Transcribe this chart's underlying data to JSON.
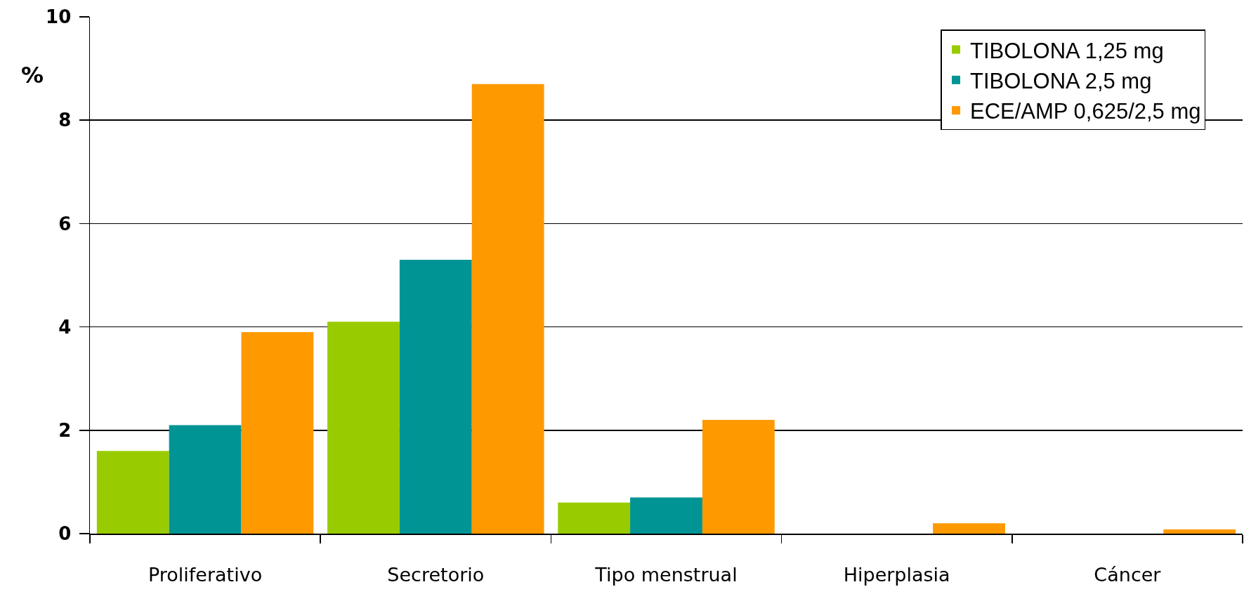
{
  "chart_data": {
    "type": "bar",
    "ylabel": "%",
    "categories": [
      "Proliferativo",
      "Secretorio",
      "Tipo menstrual",
      "Hiperplasia",
      "Cáncer"
    ],
    "series": [
      {
        "name": "TIBOLONA 1,25 mg",
        "color": "#99cc00",
        "values": [
          1.6,
          4.1,
          0.6,
          0,
          0
        ]
      },
      {
        "name": "TIBOLONA 2,5 mg",
        "color": "#009494",
        "values": [
          2.1,
          5.3,
          0.7,
          0,
          0
        ]
      },
      {
        "name": "ECE/AMP 0,625/2,5 mg",
        "color": "#ff9900",
        "values": [
          3.9,
          8.7,
          2.2,
          0.2,
          0.08
        ]
      }
    ],
    "ylim": [
      0,
      10
    ],
    "yticks": [
      0,
      2,
      4,
      6,
      8,
      10
    ],
    "grid": "y",
    "legend": "top right"
  }
}
